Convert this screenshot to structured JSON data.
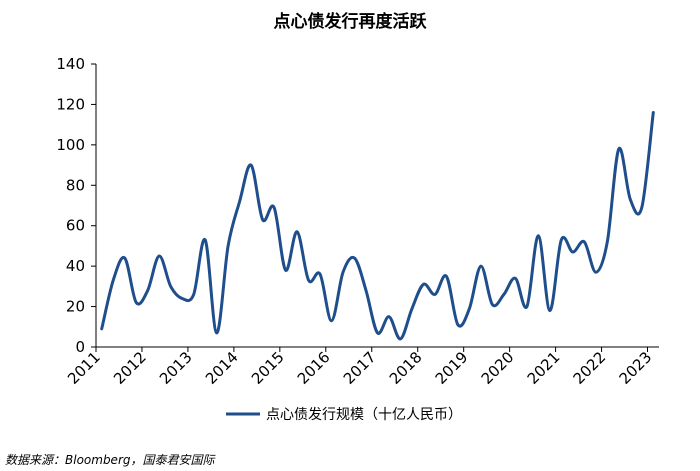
{
  "chart_data": {
    "type": "line",
    "title": "点心债发行再度活跃",
    "xlabel": "",
    "ylabel": "",
    "ylim": [
      0,
      140
    ],
    "yticks": [
      0,
      20,
      40,
      60,
      80,
      100,
      120,
      140
    ],
    "x_ticklabels": [
      "2011",
      "2012",
      "2013",
      "2014",
      "2015",
      "2016",
      "2017",
      "2018",
      "2019",
      "2020",
      "2021",
      "2022",
      "2023"
    ],
    "xlim": [
      2011.0,
      2023.25
    ],
    "grid": false,
    "legend_position": "bottom",
    "series": [
      {
        "name": "点心债发行规模（十亿人民币）",
        "color": "#1f4e8c",
        "x": [
          2011.125,
          2011.375,
          2011.625,
          2011.875,
          2012.125,
          2012.375,
          2012.625,
          2012.875,
          2013.125,
          2013.375,
          2013.625,
          2013.875,
          2014.125,
          2014.375,
          2014.625,
          2014.875,
          2015.125,
          2015.375,
          2015.625,
          2015.875,
          2016.125,
          2016.375,
          2016.625,
          2016.875,
          2017.125,
          2017.375,
          2017.625,
          2017.875,
          2018.125,
          2018.375,
          2018.625,
          2018.875,
          2019.125,
          2019.375,
          2019.625,
          2019.875,
          2020.125,
          2020.375,
          2020.625,
          2020.875,
          2021.125,
          2021.375,
          2021.625,
          2021.875,
          2022.125,
          2022.375,
          2022.625,
          2022.875,
          2023.125
        ],
        "values": [
          9,
          33,
          44,
          22,
          28,
          45,
          30,
          24,
          26,
          53,
          7,
          50,
          72,
          90,
          63,
          69,
          38,
          57,
          33,
          36,
          13,
          37,
          44,
          28,
          7,
          15,
          4,
          19,
          31,
          26,
          35,
          11,
          19,
          40,
          21,
          26,
          34,
          20,
          55,
          18,
          53,
          47,
          52,
          37,
          52,
          98,
          73,
          69,
          116
        ]
      }
    ]
  },
  "source_text": "数据来源：Bloomberg，国泰君安国际"
}
